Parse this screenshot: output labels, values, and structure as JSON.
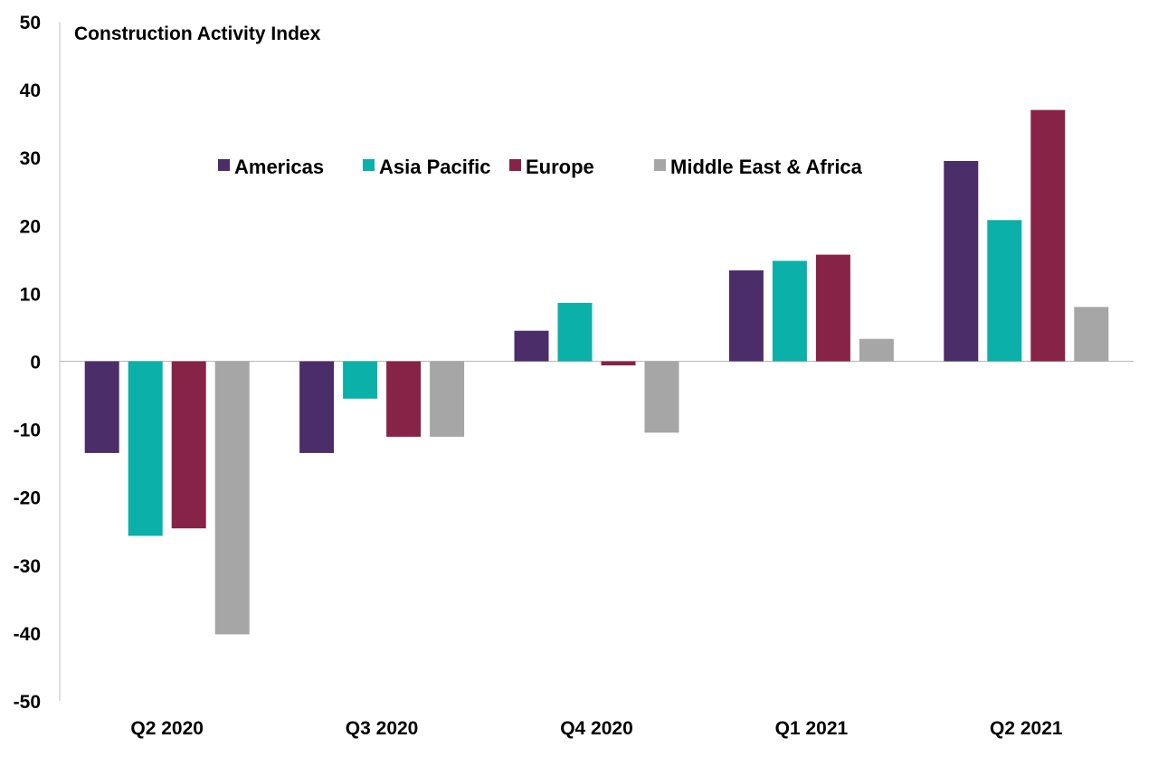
{
  "chart_data": {
    "type": "bar",
    "title": "Construction Activity Index",
    "xlabel": "",
    "ylabel": "",
    "ylim": [
      -50,
      50
    ],
    "yticks": [
      50,
      40,
      30,
      20,
      10,
      0,
      -10,
      -20,
      -30,
      -40,
      -50
    ],
    "grid": false,
    "legend_position": "top-center",
    "categories": [
      "Q2 2020",
      "Q3 2020",
      "Q4 2020",
      "Q1 2021",
      "Q2 2021"
    ],
    "series": [
      {
        "name": "Americas",
        "color": "#4B2D6A",
        "values": [
          -13.5,
          -13.5,
          4.5,
          13.4,
          29.5
        ]
      },
      {
        "name": "Asia Pacific",
        "color": "#0BB0A8",
        "values": [
          -25.7,
          -5.5,
          8.6,
          14.8,
          20.8
        ]
      },
      {
        "name": "Europe",
        "color": "#862346",
        "values": [
          -24.6,
          -11.1,
          -0.6,
          15.7,
          37.0
        ]
      },
      {
        "name": "Middle East & Africa",
        "color": "#A6A6A6",
        "values": [
          -40.2,
          -11.1,
          -10.5,
          3.3,
          8.0
        ]
      }
    ]
  }
}
